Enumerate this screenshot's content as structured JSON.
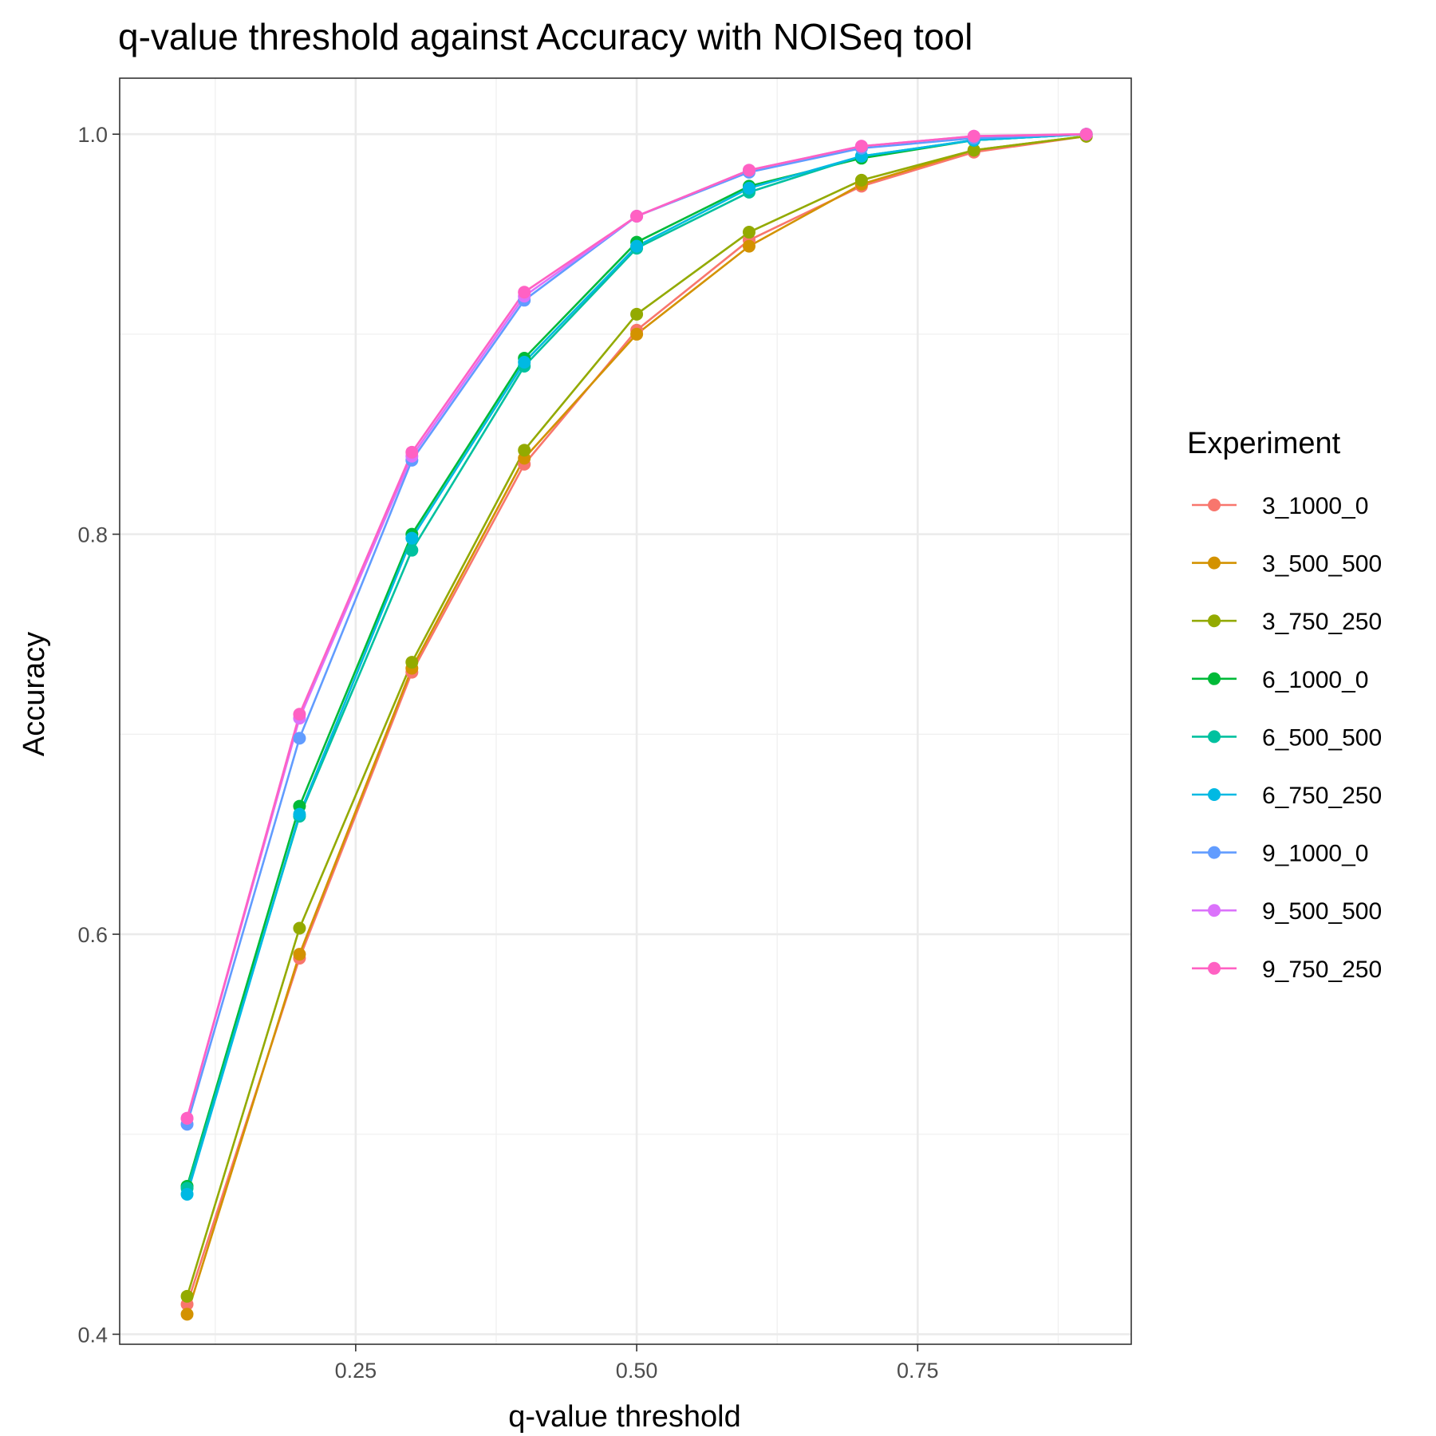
{
  "chart_data": {
    "type": "line",
    "title": "q-value threshold against Accuracy with NOISeq tool",
    "xlabel": "q-value threshold",
    "ylabel": "Accuracy",
    "xlim": [
      0.04,
      0.94
    ],
    "ylim": [
      0.395,
      1.028
    ],
    "xticks": [
      0.25,
      0.5,
      0.75
    ],
    "xtick_labels": [
      "0.25",
      "0.50",
      "0.75"
    ],
    "xminor": [
      0.125,
      0.375,
      0.625,
      0.875
    ],
    "yticks": [
      0.4,
      0.6,
      0.8,
      1.0
    ],
    "ytick_labels": [
      "0.4",
      "0.6",
      "0.8",
      "1.0"
    ],
    "yminor": [
      0.5,
      0.7,
      0.9
    ],
    "grid": true,
    "legend_title": "Experiment",
    "legend_position": "right",
    "x": [
      0.1,
      0.2,
      0.3,
      0.4,
      0.5,
      0.6,
      0.7,
      0.8,
      0.9
    ],
    "series": [
      {
        "name": "3_1000_0",
        "color": "#F8766D",
        "values": [
          0.415,
          0.588,
          0.731,
          0.835,
          0.902,
          0.947,
          0.974,
          0.991,
          0.999
        ]
      },
      {
        "name": "3_500_500",
        "color": "#D39200",
        "values": [
          0.41,
          0.59,
          0.733,
          0.838,
          0.9,
          0.944,
          0.975,
          0.992,
          0.999
        ]
      },
      {
        "name": "3_750_250",
        "color": "#93AA00",
        "values": [
          0.419,
          0.603,
          0.736,
          0.842,
          0.91,
          0.951,
          0.977,
          0.992,
          0.999
        ]
      },
      {
        "name": "6_1000_0",
        "color": "#00BA38",
        "values": [
          0.474,
          0.664,
          0.8,
          0.888,
          0.946,
          0.974,
          0.988,
          0.997,
          1.0
        ]
      },
      {
        "name": "6_500_500",
        "color": "#00C19F",
        "values": [
          0.473,
          0.659,
          0.792,
          0.884,
          0.943,
          0.971,
          0.989,
          0.997,
          1.0
        ]
      },
      {
        "name": "6_750_250",
        "color": "#00B9E3",
        "values": [
          0.47,
          0.66,
          0.798,
          0.886,
          0.944,
          0.973,
          0.989,
          0.997,
          1.0
        ]
      },
      {
        "name": "9_1000_0",
        "color": "#619CFF",
        "values": [
          0.505,
          0.698,
          0.837,
          0.917,
          0.959,
          0.981,
          0.993,
          0.998,
          1.0
        ]
      },
      {
        "name": "9_500_500",
        "color": "#DB72FB",
        "values": [
          0.508,
          0.708,
          0.839,
          0.919,
          0.959,
          0.982,
          0.994,
          0.999,
          1.0
        ]
      },
      {
        "name": "9_750_250",
        "color": "#FF61C3",
        "values": [
          0.508,
          0.71,
          0.841,
          0.921,
          0.959,
          0.982,
          0.994,
          0.999,
          1.0
        ]
      }
    ]
  }
}
